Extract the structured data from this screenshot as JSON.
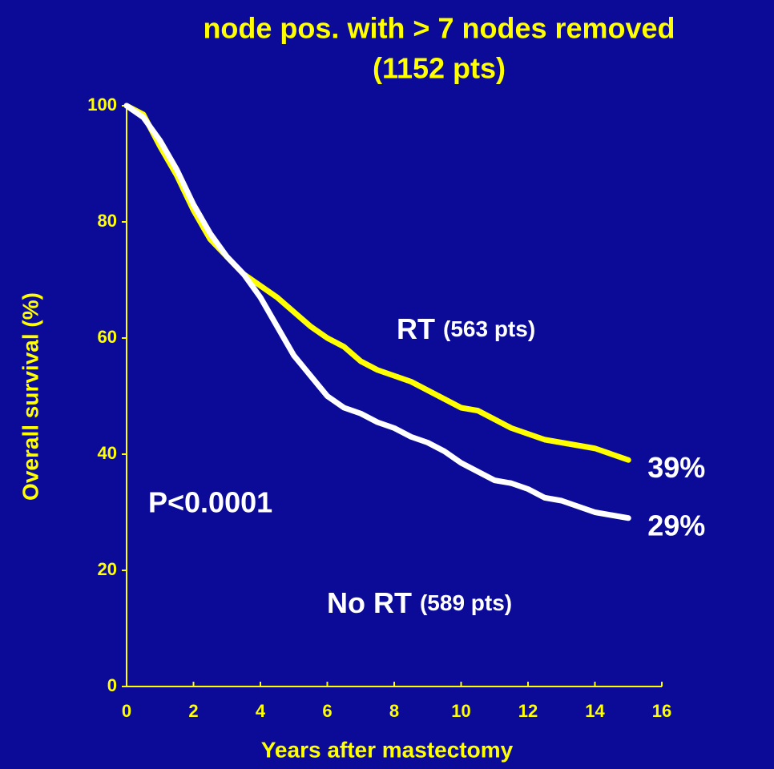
{
  "chart_data": {
    "type": "line",
    "title": "node pos. with > 7 nodes removed",
    "subtitle": "(1152 pts)",
    "x_label": "Years after mastectomy",
    "y_label": "Overall survival (%)",
    "x": [
      0,
      0.5,
      1,
      1.5,
      2,
      2.5,
      3,
      3.5,
      4,
      4.5,
      5,
      5.5,
      6,
      6.5,
      7,
      7.5,
      8,
      8.5,
      9,
      9.5,
      10,
      10.5,
      11,
      11.5,
      12,
      12.5,
      13,
      13.5,
      14,
      14.5,
      15
    ],
    "series": [
      {
        "name": "RT",
        "color": "#ffff00",
        "values": [
          100,
          98.5,
          93,
          88,
          82,
          77,
          74,
          71,
          69,
          67,
          64.5,
          62,
          60,
          58.5,
          56,
          54.5,
          53.5,
          52.5,
          51,
          49.5,
          48,
          47.5,
          46,
          44.5,
          43.5,
          42.5,
          42,
          41.5,
          41,
          40,
          39
        ],
        "value_labels": [
          null,
          null,
          null,
          null,
          null,
          null,
          null,
          null,
          null,
          null,
          null,
          null,
          null,
          null,
          null,
          null,
          null,
          null,
          null,
          null,
          null,
          null,
          null,
          null,
          null,
          null,
          null,
          null,
          null,
          null,
          "39%"
        ]
      },
      {
        "name": "No RT",
        "color": "#ffffff",
        "values": [
          100,
          98,
          94,
          89,
          83,
          78,
          74,
          71,
          67,
          62,
          57,
          53.5,
          50,
          48,
          47,
          45.5,
          44.5,
          43,
          42,
          40.5,
          38.5,
          37,
          35.5,
          35,
          34,
          32.5,
          32,
          31,
          30,
          29.5,
          29
        ],
        "value_labels": [
          null,
          null,
          null,
          null,
          null,
          null,
          null,
          null,
          null,
          null,
          null,
          null,
          null,
          null,
          null,
          null,
          null,
          null,
          null,
          null,
          null,
          null,
          null,
          null,
          null,
          null,
          null,
          null,
          null,
          null,
          "29%"
        ]
      }
    ],
    "annotations": [
      "(563 pts)",
      "(589 pts)",
      "P<0.0001"
    ],
    "xlim": [
      0,
      16
    ],
    "xticks": [
      0,
      2,
      4,
      6,
      8,
      10,
      12,
      14,
      16
    ],
    "ylim": [
      0,
      100
    ],
    "yticks": [
      0,
      20,
      40,
      60,
      80,
      100
    ],
    "axis_color": "#ffff00",
    "grid": false
  }
}
